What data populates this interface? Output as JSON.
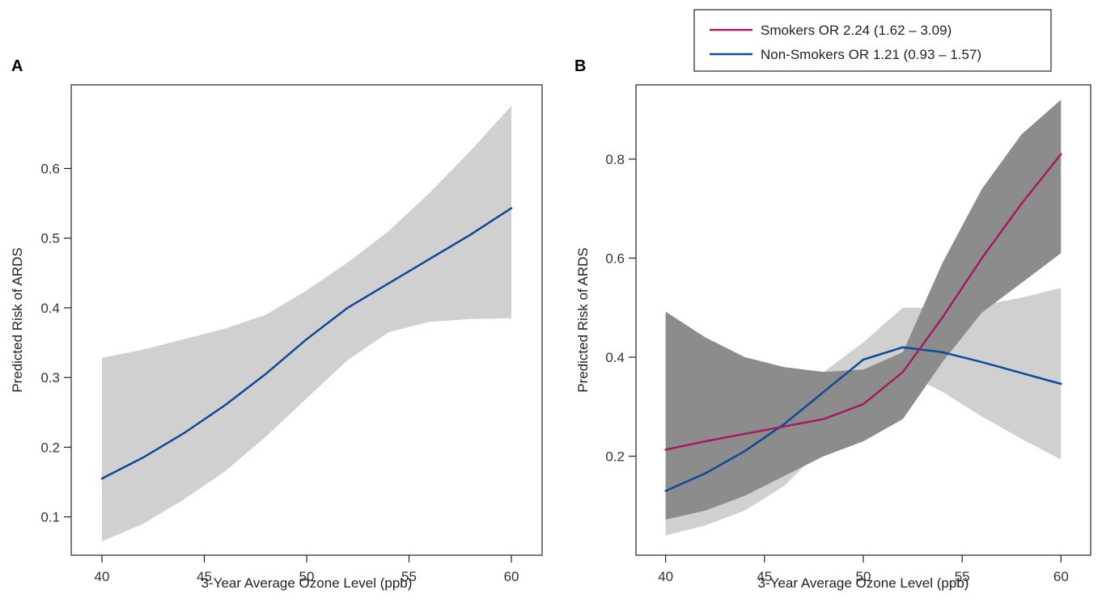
{
  "chart_data": [
    {
      "panel_label": "A",
      "type": "line",
      "xlabel": "3-Year Average Ozone Level (ppb)",
      "ylabel": "Predicted Risk of ARDS",
      "xlim": [
        38.5,
        61.5
      ],
      "ylim": [
        0.045,
        0.72
      ],
      "xticks": [
        40,
        45,
        50,
        55,
        60
      ],
      "yticks": [
        0.1,
        0.2,
        0.3,
        0.4,
        0.5,
        0.6
      ],
      "ytick_labels": [
        "0.1",
        "0.2",
        "0.3",
        "0.4",
        "0.5",
        "0.6"
      ],
      "grid": false,
      "series": [
        {
          "color": "#0d4a97",
          "band_color": "#d0d0d0",
          "x": [
            40,
            42,
            44,
            46,
            48,
            50,
            52,
            54,
            56,
            58,
            60
          ],
          "y": [
            0.155,
            0.185,
            0.22,
            0.26,
            0.305,
            0.355,
            0.4,
            0.435,
            0.47,
            0.505,
            0.543
          ],
          "lower": [
            0.065,
            0.09,
            0.125,
            0.165,
            0.215,
            0.27,
            0.325,
            0.365,
            0.38,
            0.384,
            0.385
          ],
          "upper": [
            0.328,
            0.34,
            0.355,
            0.37,
            0.39,
            0.425,
            0.465,
            0.51,
            0.565,
            0.625,
            0.69
          ]
        }
      ]
    },
    {
      "panel_label": "B",
      "type": "line",
      "xlabel": "3-Year Average Ozone Level (ppb)",
      "ylabel": "Predicted Risk of ARDS",
      "xlim": [
        38.5,
        61.5
      ],
      "ylim": [
        0.0,
        0.95
      ],
      "xticks": [
        40,
        45,
        50,
        55,
        60
      ],
      "yticks": [
        0.2,
        0.4,
        0.6,
        0.8
      ],
      "ytick_labels": [
        "0.2",
        "0.4",
        "0.6",
        "0.8"
      ],
      "grid": false,
      "legend_position": "top-right",
      "series": [
        {
          "name": "Non-Smokers OR 1.21 (0.93 – 1.57)",
          "color": "#0d4a97",
          "band_color": "#d0d0d0",
          "x": [
            40,
            42,
            44,
            46,
            48,
            50,
            52,
            54,
            56,
            58,
            60
          ],
          "y": [
            0.13,
            0.165,
            0.21,
            0.265,
            0.33,
            0.395,
            0.42,
            0.41,
            0.39,
            0.368,
            0.346
          ],
          "lower": [
            0.04,
            0.06,
            0.09,
            0.14,
            0.22,
            0.33,
            0.37,
            0.33,
            0.28,
            0.235,
            0.193
          ],
          "upper": [
            0.49,
            0.425,
            0.385,
            0.37,
            0.37,
            0.43,
            0.5,
            0.5,
            0.505,
            0.52,
            0.54
          ]
        },
        {
          "name": "Smokers OR 2.24 (1.62 – 3.09)",
          "color": "#a61a62",
          "band_color": "#8c8c8c",
          "x": [
            40,
            42,
            44,
            46,
            48,
            50,
            52,
            54,
            56,
            58,
            60
          ],
          "y": [
            0.213,
            0.23,
            0.245,
            0.26,
            0.275,
            0.305,
            0.37,
            0.48,
            0.6,
            0.71,
            0.81
          ],
          "lower": [
            0.072,
            0.09,
            0.12,
            0.16,
            0.2,
            0.23,
            0.275,
            0.39,
            0.49,
            0.55,
            0.61
          ],
          "upper": [
            0.492,
            0.44,
            0.4,
            0.38,
            0.37,
            0.375,
            0.41,
            0.59,
            0.74,
            0.85,
            0.92
          ]
        }
      ]
    }
  ]
}
